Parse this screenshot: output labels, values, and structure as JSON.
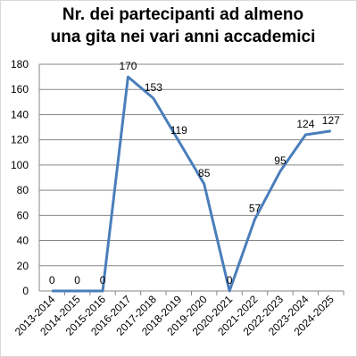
{
  "chart_data": {
    "type": "line",
    "title": [
      "Nr. dei partecipanti ad almeno",
      "una gita nei vari anni accademici"
    ],
    "categories": [
      "2013-2014",
      "2014-2015",
      "2015-2016",
      "2016-2017",
      "2017-2018",
      "2018-2019",
      "2019-2020",
      "2020-2021",
      "2021-2022",
      "2022-2023",
      "2023-2024",
      "2024-2025"
    ],
    "series": [
      {
        "color": "#4a7ebb",
        "values": [
          0,
          0,
          0,
          170,
          153,
          119,
          85,
          0,
          57,
          95,
          124,
          127
        ]
      }
    ],
    "ylim": [
      0,
      180
    ],
    "yticks": [
      0,
      20,
      40,
      60,
      80,
      100,
      120,
      140,
      160,
      180
    ],
    "grid": true
  }
}
